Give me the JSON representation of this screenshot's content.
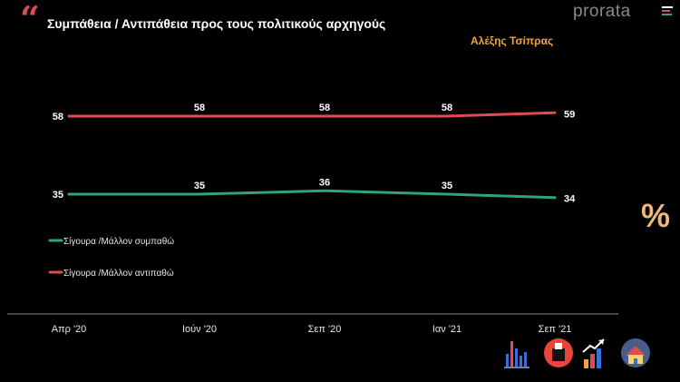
{
  "header": {
    "title": "Συμπάθεια / Αντιπάθεια προς τους πολιτικούς αρχηγούς",
    "brand": "prorata",
    "subject": "Αλέξης Τσίπρας"
  },
  "side_label": "%",
  "icons": [
    "bar-chart-icon",
    "voting-box-icon",
    "trend-up-icon",
    "house-icon"
  ],
  "colors": {
    "accent": "#e04a52",
    "subject": "#f0a63c",
    "brand_bars": [
      "#ffffff",
      "#e04a52",
      "#2fa37a",
      "#7a6fd0"
    ]
  },
  "chart_data": {
    "type": "line",
    "categories": [
      "Απρ '20",
      "Ιούν '20",
      "Σεπ '20",
      "Ιαν '21",
      "Σεπ '21"
    ],
    "series": [
      {
        "name": "Σίγουρα /Μάλλον συμπαθώ",
        "values": [
          35,
          35,
          36,
          35,
          34
        ],
        "color": "#2fa37a"
      },
      {
        "name": "Σίγουρα /Μάλλον αντιπαθώ",
        "values": [
          58,
          58,
          58,
          58,
          59
        ],
        "color": "#e04a52"
      }
    ],
    "legend": "left",
    "grid": false
  }
}
